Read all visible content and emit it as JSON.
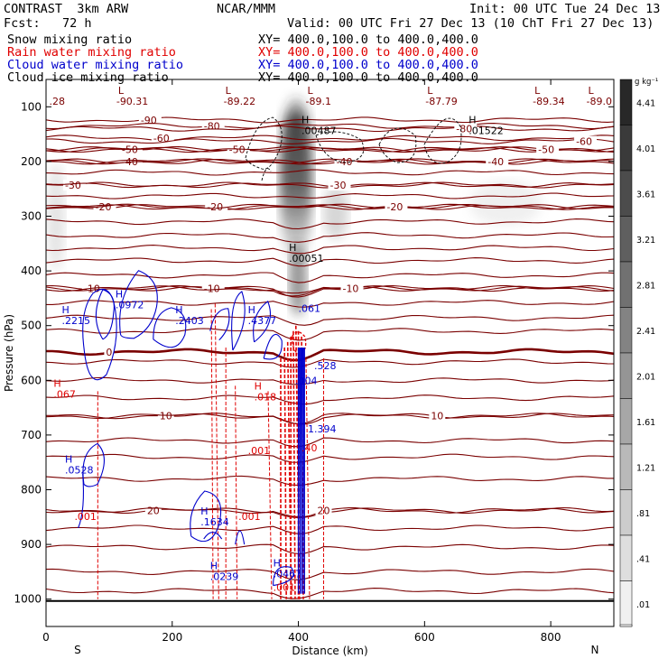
{
  "header": {
    "title": "CONTRAST  3km ARW",
    "fcst": "Fcst:   72 h",
    "center": "NCAR/MMM",
    "init": "Init: 00 UTC Tue 24 Dec 13",
    "valid": "Valid: 00 UTC Fri 27 Dec 13 (10 ChT Fri 27 Dec 13)"
  },
  "colors": {
    "snow": "#000000",
    "rain": "#e00000",
    "cloud_water": "#0000cc",
    "cloud_ice": "#000000",
    "temperature": "#7a0000"
  },
  "chart_data": {
    "type": "cross-section",
    "xlabel": "Distance (km)",
    "ylabel": "Pressure (hPa)",
    "xlim": [
      0,
      900
    ],
    "ylim": [
      1050,
      50
    ],
    "x_ticks": [
      0,
      200,
      400,
      600,
      800
    ],
    "y_ticks": [
      100,
      200,
      300,
      400,
      500,
      600,
      700,
      800,
      900,
      1000
    ],
    "x_end_labels": {
      "left": "S",
      "right": "N"
    },
    "legend": [
      {
        "name": "Snow mixing ratio",
        "xy": "XY= 400.0,100.0 to 400.0,400.0",
        "color": "#000000"
      },
      {
        "name": "Rain water mixing ratio",
        "xy": "XY= 400.0,100.0 to 400.0,400.0",
        "color": "#e00000"
      },
      {
        "name": "Cloud water mixing ratio",
        "xy": "XY= 400.0,100.0 to 400.0,400.0",
        "color": "#0000cc"
      },
      {
        "name": "Cloud ice mixing ratio",
        "xy": "XY= 400.0,100.0 to 400.0,400.0",
        "color": "#000000"
      }
    ],
    "colorbar": {
      "unit": "g kg⁻¹",
      "labels": [
        "4.41",
        "4.01",
        "3.61",
        "3.21",
        "2.81",
        "2.41",
        "2.01",
        "1.61",
        "1.21",
        ".81",
        ".41",
        ".01"
      ]
    },
    "temperature_contours": [
      {
        "p0": 124,
        "label": "-90",
        "lx": 150
      },
      {
        "p0": 135,
        "label": "-80",
        "lx": 250
      },
      {
        "p0": 140,
        "label": "-80",
        "lx": 650
      },
      {
        "p0": 157,
        "label": "-60",
        "lx": 170
      },
      {
        "p0": 163,
        "label": "-60",
        "lx": 840
      },
      {
        "p0": 178,
        "label": "-50",
        "lx": 120
      },
      {
        "p0": 178,
        "label": "-50",
        "lx": 290
      },
      {
        "p0": 178,
        "label": "-50",
        "lx": 780
      },
      {
        "p0": 200,
        "label": "-40",
        "lx": 120
      },
      {
        "p0": 200,
        "label": "-40",
        "lx": 460
      },
      {
        "p0": 200,
        "label": "-40",
        "lx": 700
      },
      {
        "p0": 220,
        "label": "",
        "lx": 0
      },
      {
        "p0": 243,
        "label": "-30",
        "lx": 30
      },
      {
        "p0": 243,
        "label": "-30",
        "lx": 450
      },
      {
        "p0": 263,
        "label": "",
        "lx": 0
      },
      {
        "p0": 283,
        "label": "-20",
        "lx": 78
      },
      {
        "p0": 283,
        "label": "-20",
        "lx": 255
      },
      {
        "p0": 283,
        "label": "-20",
        "lx": 540
      },
      {
        "p0": 310,
        "label": "",
        "lx": 0
      },
      {
        "p0": 335,
        "label": "",
        "lx": 0
      },
      {
        "p0": 358,
        "label": "",
        "lx": 0
      },
      {
        "p0": 381,
        "label": "",
        "lx": 0
      },
      {
        "p0": 408,
        "label": "",
        "lx": 0
      },
      {
        "p0": 432,
        "label": "-10",
        "lx": 60
      },
      {
        "p0": 432,
        "label": "-10",
        "lx": 250
      },
      {
        "p0": 432,
        "label": "-10",
        "lx": 470
      },
      {
        "p0": 458,
        "label": "",
        "lx": 0
      },
      {
        "p0": 486,
        "label": "",
        "lx": 0
      },
      {
        "p0": 510,
        "label": "",
        "lx": 0
      },
      {
        "p0": 548,
        "label": "0",
        "lx": 95,
        "bold": true
      },
      {
        "p0": 566,
        "label": "",
        "lx": 0
      },
      {
        "p0": 600,
        "label": "",
        "lx": 0
      },
      {
        "p0": 632,
        "label": "",
        "lx": 0
      },
      {
        "p0": 665,
        "label": "10",
        "lx": 180
      },
      {
        "p0": 665,
        "label": "10",
        "lx": 610
      },
      {
        "p0": 710,
        "label": "",
        "lx": 0
      },
      {
        "p0": 740,
        "label": "",
        "lx": 0
      },
      {
        "p0": 780,
        "label": "",
        "lx": 0
      },
      {
        "p0": 838,
        "label": "20",
        "lx": 160
      },
      {
        "p0": 838,
        "label": "20",
        "lx": 430
      },
      {
        "p0": 870,
        "label": "",
        "lx": 0
      },
      {
        "p0": 905,
        "label": "",
        "lx": 0
      },
      {
        "p0": 950,
        "label": "",
        "lx": 0
      },
      {
        "p0": 985,
        "label": "",
        "lx": 0
      }
    ],
    "top_labels": [
      {
        "x": 150,
        "label": "-90.31",
        "lx": 140
      },
      {
        "x": 320,
        "label": "-89.22",
        "lx": 310
      },
      {
        "x": 450,
        "label": "-89.1",
        "lx": 440
      },
      {
        "x": 640,
        "label": "-87.79",
        "lx": 630
      },
      {
        "x": 810,
        "label": "-89.34",
        "lx": 800
      },
      {
        "x": 895,
        "label": "-89.0",
        "lx": 885
      },
      {
        "x": 5,
        "label": ".28",
        "lx": 5
      }
    ],
    "annotations": [
      {
        "x": 405,
        "p": 150,
        "h": "H",
        "v": ".00487",
        "color": "#000000"
      },
      {
        "x": 670,
        "p": 150,
        "h": "H",
        "v": ".01522",
        "color": "#000000"
      },
      {
        "x": 385,
        "p": 383,
        "h": "H",
        "v": ".00051",
        "color": "#000000"
      },
      {
        "x": 110,
        "p": 468,
        "h": "H",
        "v": ".0972",
        "color": "#0000cc"
      },
      {
        "x": 25,
        "p": 497,
        "h": "H",
        "v": ".2215",
        "color": "#0000cc"
      },
      {
        "x": 205,
        "p": 497,
        "h": "H",
        "v": ".2403",
        "color": "#0000cc"
      },
      {
        "x": 320,
        "p": 497,
        "h": "H",
        "v": ".4377",
        "color": "#0000cc"
      },
      {
        "x": 400,
        "p": 475,
        "h": "",
        "v": ".061",
        "color": "#0000cc"
      },
      {
        "x": 12,
        "p": 632,
        "h": "H",
        "v": ".067",
        "color": "#e00000"
      },
      {
        "x": 330,
        "p": 637,
        "h": "H",
        "v": ".018",
        "color": "#e00000"
      },
      {
        "x": 30,
        "p": 770,
        "h": "H",
        "v": ".0528",
        "color": "#0000cc"
      },
      {
        "x": 245,
        "p": 865,
        "h": "H",
        "v": ".1634",
        "color": "#0000cc"
      },
      {
        "x": 320,
        "p": 735,
        "h": "",
        "v": ".001",
        "color": "#e00000"
      },
      {
        "x": 45,
        "p": 855,
        "h": "",
        "v": ".001",
        "color": "#e00000"
      },
      {
        "x": 305,
        "p": 855,
        "h": "",
        "v": ".001",
        "color": "#e00000"
      },
      {
        "x": 260,
        "p": 965,
        "h": "H",
        "v": ".0239",
        "color": "#0000cc"
      },
      {
        "x": 360,
        "p": 960,
        "h": "H",
        "v": ".0467",
        "color": "#0000cc"
      },
      {
        "x": 360,
        "p": 985,
        "h": "",
        "v": ".001",
        "color": "#e00000"
      },
      {
        "x": 415,
        "p": 695,
        "h": "",
        "v": "1.394",
        "color": "#0000cc"
      },
      {
        "x": 405,
        "p": 730,
        "h": "",
        "v": ".40",
        "color": "#e00000"
      },
      {
        "x": 395,
        "p": 607,
        "h": "",
        "v": ".004",
        "color": "#0000cc"
      },
      {
        "x": 425,
        "p": 580,
        "h": "",
        "v": ".528",
        "color": "#0000cc"
      }
    ]
  }
}
